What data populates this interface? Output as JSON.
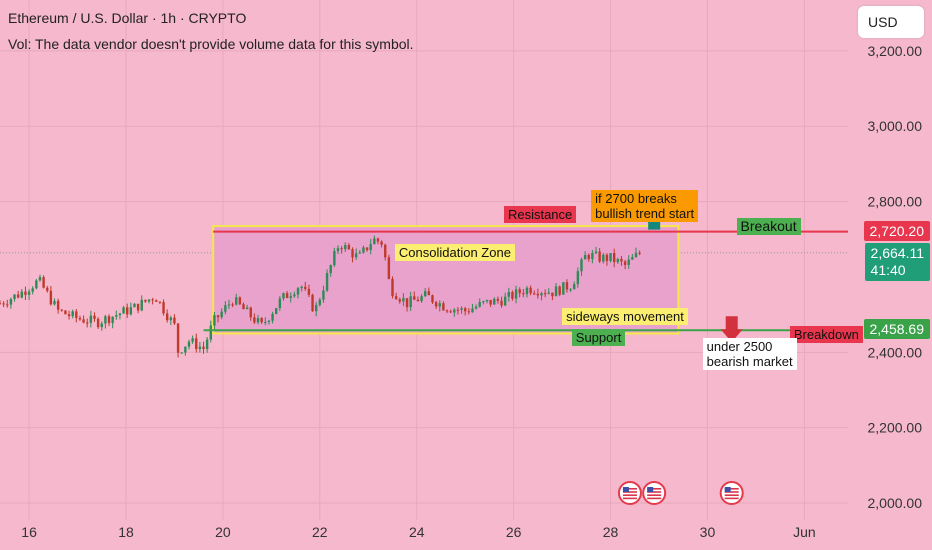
{
  "header": {
    "title": "Ethereum / U.S. Dollar · 1h · CRYPTO",
    "vol_note": "Vol: The data vendor doesn't provide volume data for this symbol."
  },
  "currency_button": "USD",
  "colors": {
    "background": "#f5b8cc",
    "zone_fill": "#e8a2cc",
    "zone_border": "#f4e84a",
    "up_candle": "#2e8b57",
    "down_candle": "#c0392b",
    "resistance_line": "#e8364e",
    "support_line": "#3aa34a",
    "arrow_up": "#14897a",
    "arrow_down": "#d1323e",
    "label_red": "#e8364e",
    "label_green": "#4caf50",
    "label_yellow": "#fcee71",
    "label_orange": "#fb9a00",
    "current_price_bg": "#1f9e77"
  },
  "chart_data": {
    "type": "candlestick",
    "x_ticks": [
      "16",
      "18",
      "20",
      "22",
      "24",
      "26",
      "28",
      "30",
      "Jun"
    ],
    "x_tick_values": [
      16,
      18,
      20,
      22,
      24,
      26,
      28,
      30,
      32
    ],
    "xlim": [
      15.4,
      32.9
    ],
    "y_ticks": [
      "3,200.00",
      "3,000.00",
      "2,800.00",
      "2,400.00",
      "2,200.00",
      "2,000.00"
    ],
    "y_tick_values": [
      3200,
      3000,
      2800,
      2400,
      2200,
      2000
    ],
    "ylim": [
      1955,
      3335
    ],
    "series": [
      {
        "x": [
          15.4,
          15.8,
          16.2,
          16.6,
          17.0,
          17.4,
          17.8,
          18.2,
          18.6,
          19.0,
          19.05,
          19.3,
          19.6,
          19.8,
          20.2,
          20.8,
          21.2,
          21.6,
          21.9,
          22.2,
          22.4,
          22.8,
          23.1,
          23.3,
          23.45,
          23.8,
          24.2,
          24.6,
          25.0,
          25.4,
          25.8,
          26.3,
          26.8,
          27.2,
          27.5,
          27.8,
          28.0,
          28.3,
          28.6
        ],
        "values": [
          2530,
          2555,
          2590,
          2510,
          2490,
          2480,
          2500,
          2520,
          2550,
          2470,
          2400,
          2430,
          2410,
          2480,
          2540,
          2470,
          2540,
          2580,
          2510,
          2620,
          2690,
          2650,
          2700,
          2690,
          2570,
          2530,
          2550,
          2520,
          2510,
          2530,
          2540,
          2570,
          2560,
          2580,
          2660,
          2650,
          2650,
          2630,
          2664
        ]
      }
    ],
    "current_price": "2,664.11",
    "countdown": "41:40",
    "resistance_price": "2,720.20",
    "support_price": "2,458.69",
    "resistance_value": 2720.2,
    "support_value": 2458.69,
    "last_value": 2664.11,
    "zone": {
      "x": [
        19.8,
        29.4
      ],
      "y": [
        2450,
        2735
      ]
    },
    "resistance_line_x": [
      19.8,
      32.9
    ],
    "support_line_x": [
      19.6,
      32.9
    ],
    "arrow_up_x": 28.9,
    "arrow_down_x": 30.5,
    "event_markers_x": [
      28.4,
      28.9,
      30.5
    ],
    "annotations": {
      "resistance": "Resistance",
      "consolidation": "Consolidation Zone",
      "bullish_1": "if 2700  breaks",
      "bullish_2": "bullish trend start",
      "breakout": "Breakout",
      "sideways": "sideways movement",
      "support": "Support",
      "breakdown": "Breakdown",
      "bearish_1": "under 2500",
      "bearish_2": "bearish market"
    }
  }
}
